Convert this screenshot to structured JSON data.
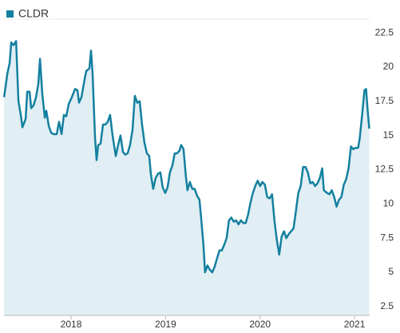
{
  "chart_data": {
    "type": "area",
    "series": [
      {
        "name": "CLDR",
        "color": "#14809f",
        "x": [
          2017.291,
          2017.325,
          2017.35,
          2017.367,
          2017.392,
          2017.418,
          2017.443,
          2017.468,
          2017.485,
          2017.519,
          2017.536,
          2017.561,
          2017.578,
          2017.603,
          2017.629,
          2017.654,
          2017.671,
          2017.696,
          2017.722,
          2017.738,
          2017.764,
          2017.789,
          2017.814,
          2017.848,
          2017.873,
          2017.899,
          2017.924,
          2017.949,
          2017.975,
          2018.008,
          2018.042,
          2018.068,
          2018.084,
          2018.11,
          2018.135,
          2018.16,
          2018.194,
          2018.211,
          2018.228,
          2018.253,
          2018.27,
          2018.287,
          2018.312,
          2018.338,
          2018.363,
          2018.388,
          2018.413,
          2018.439,
          2018.473,
          2018.498,
          2018.523,
          2018.549,
          2018.574,
          2018.599,
          2018.624,
          2018.65,
          2018.675,
          2018.7,
          2018.726,
          2018.751,
          2018.776,
          2018.802,
          2018.827,
          2018.844,
          2018.869,
          2018.895,
          2018.92,
          2018.945,
          2018.97,
          2018.996,
          2019.021,
          2019.046,
          2019.072,
          2019.097,
          2019.122,
          2019.148,
          2019.165,
          2019.19,
          2019.215,
          2019.232,
          2019.257,
          2019.283,
          2019.308,
          2019.333,
          2019.359,
          2019.376,
          2019.401,
          2019.418,
          2019.443,
          2019.468,
          2019.494,
          2019.519,
          2019.544,
          2019.57,
          2019.595,
          2019.62,
          2019.646,
          2019.671,
          2019.696,
          2019.722,
          2019.747,
          2019.772,
          2019.797,
          2019.823,
          2019.848,
          2019.873,
          2019.899,
          2019.924,
          2019.949,
          2019.975,
          2020.0,
          2020.025,
          2020.051,
          2020.076,
          2020.101,
          2020.127,
          2020.152,
          2020.177,
          2020.203,
          2020.228,
          2020.253,
          2020.278,
          2020.304,
          2020.329,
          2020.354,
          2020.38,
          2020.405,
          2020.43,
          2020.456,
          2020.481,
          2020.506,
          2020.532,
          2020.557,
          2020.582,
          2020.608,
          2020.633,
          2020.658,
          2020.675,
          2020.709,
          2020.734,
          2020.759,
          2020.785,
          2020.81,
          2020.835,
          2020.861,
          2020.886,
          2020.911,
          2020.937,
          2020.962,
          2020.987,
          2021.013,
          2021.038,
          2021.055,
          2021.08,
          2021.105,
          2021.122,
          2021.139,
          2021.156
        ],
        "values": [
          17.8,
          19.5,
          20.3,
          21.8,
          21.6,
          21.9,
          17.5,
          16.5,
          15.6,
          16.2,
          18.2,
          18.2,
          17.0,
          17.2,
          17.8,
          18.8,
          20.6,
          18.0,
          16.3,
          16.8,
          15.7,
          15.2,
          15.1,
          15.1,
          16.0,
          15.1,
          16.5,
          16.4,
          17.3,
          17.8,
          18.4,
          18.3,
          17.4,
          17.8,
          18.8,
          19.7,
          19.9,
          21.2,
          19.5,
          14.9,
          13.2,
          14.3,
          14.4,
          15.8,
          15.8,
          16.0,
          16.5,
          15.0,
          13.5,
          14.3,
          15.0,
          13.8,
          13.6,
          13.7,
          14.3,
          15.4,
          17.9,
          17.4,
          17.5,
          15.8,
          14.5,
          13.7,
          13.5,
          12.2,
          11.1,
          11.9,
          12.2,
          12.3,
          11.2,
          10.8,
          11.2,
          12.3,
          12.8,
          13.7,
          13.7,
          13.9,
          14.3,
          14.0,
          12.0,
          11.0,
          11.6,
          11.1,
          11.1,
          10.6,
          10.3,
          9.0,
          7.0,
          5.0,
          5.5,
          5.2,
          5.0,
          5.4,
          6.0,
          6.6,
          6.6,
          7.0,
          7.5,
          8.8,
          9.0,
          8.7,
          8.8,
          8.5,
          8.8,
          8.6,
          8.6,
          9.2,
          10.1,
          10.8,
          11.3,
          11.7,
          11.3,
          11.6,
          11.4,
          10.5,
          10.4,
          10.7,
          8.8,
          7.4,
          6.3,
          7.6,
          8.0,
          7.5,
          7.8,
          8.0,
          8.2,
          9.5,
          10.8,
          11.3,
          12.7,
          12.7,
          12.3,
          11.5,
          11.6,
          11.3,
          11.5,
          11.9,
          12.6,
          11.0,
          10.8,
          10.7,
          11.0,
          10.5,
          9.8,
          10.3,
          10.5,
          11.4,
          11.8,
          12.6,
          14.2,
          14.0,
          14.1,
          14.1,
          14.8,
          16.5,
          18.3,
          18.4,
          16.8,
          15.5
        ]
      }
    ],
    "fill_color": "#e1eef4",
    "xlim": [
      2017.29,
      2021.16
    ],
    "xticks": [
      2018,
      2019,
      2020,
      2021
    ],
    "ylim": [
      1.85,
      23.5
    ],
    "yticks": [
      2.5,
      5,
      7.5,
      10,
      12.5,
      15,
      17.5,
      20,
      22.5
    ],
    "grid": false,
    "legend": "top-left"
  }
}
